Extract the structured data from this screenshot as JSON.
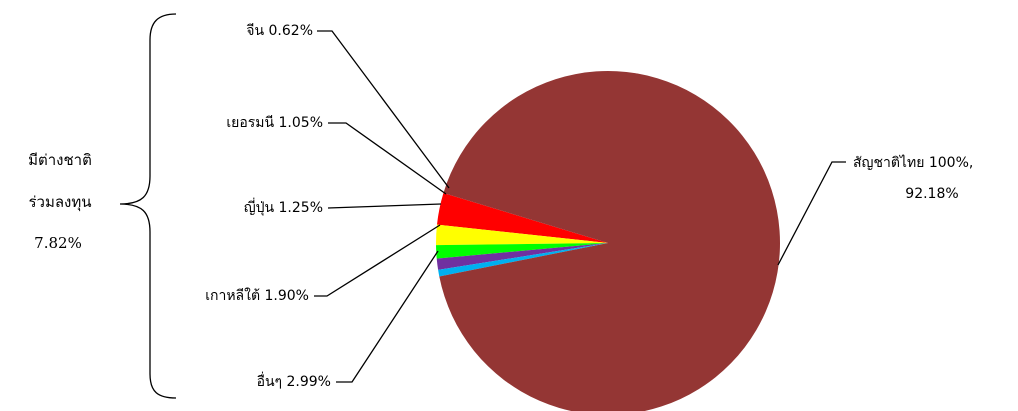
{
  "chart_data": {
    "type": "pie",
    "slices": [
      {
        "label": "สัญชาติไทย 100%,",
        "label2": "92.18%",
        "value": 92.18,
        "color": "#943634"
      },
      {
        "label": "อื่นๆ  2.99%",
        "value": 2.99,
        "color": "#ff0000"
      },
      {
        "label": "เกาหลีใต้  1.90%",
        "value": 1.9,
        "color": "#ffff00"
      },
      {
        "label": "ญี่ปุ่น  1.25%",
        "value": 1.25,
        "color": "#00ff00"
      },
      {
        "label": "เยอรมนี  1.05%",
        "value": 1.05,
        "color": "#7030a0"
      },
      {
        "label": "จีน  0.62%",
        "value": 0.62,
        "color": "#00b0f0"
      }
    ],
    "group_label": {
      "line1": "มีต่างชาติ",
      "line2": "ร่วมลงทุน",
      "percent": "7.82%"
    }
  }
}
